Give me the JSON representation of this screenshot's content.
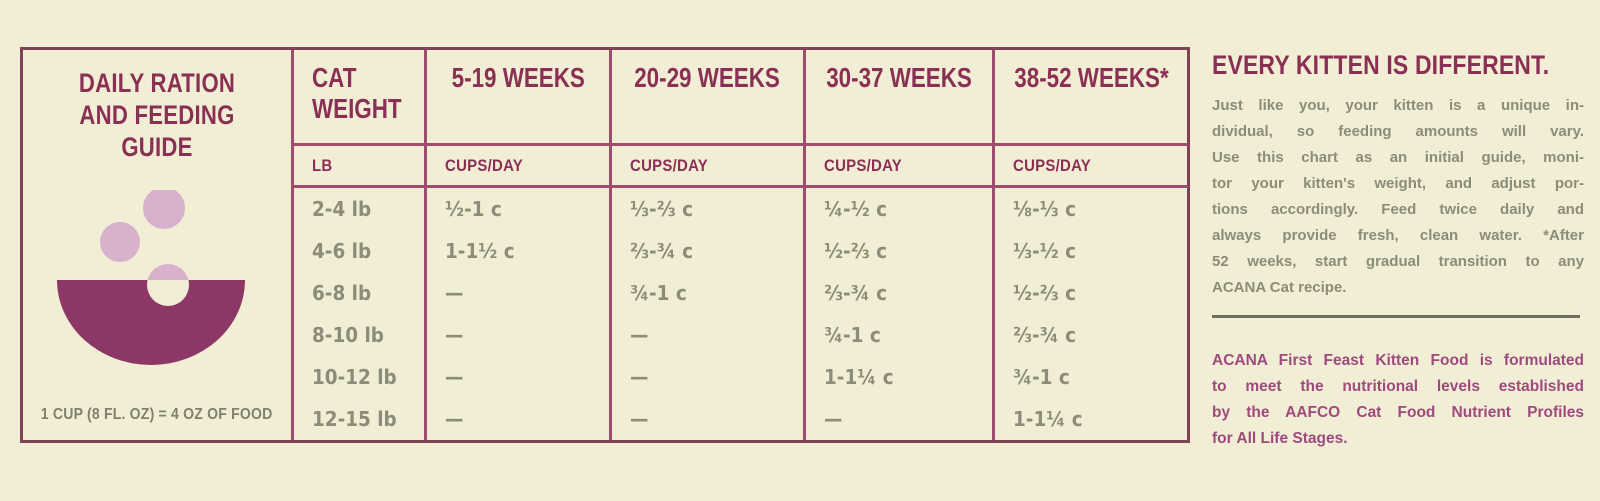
{
  "colors": {
    "background": "#f1eed5",
    "maroon_text": "#8a3054",
    "border_outer": "#7d4554",
    "border_inner": "#9c4e6c",
    "data_text_gray": "#8c8c7a",
    "caption_gray": "#80806f",
    "bowl": "#8d3766",
    "kibble_pink": "#d8b1cd",
    "aafco_text": "#9e4a7e",
    "divider": "#6e6e5f"
  },
  "feeding_table": {
    "title": "DAILY RATION\nAND FEEDING GUIDE",
    "caption": "1 CUP (8 FL. OZ) = 4 OZ OF FOOD",
    "columns": [
      {
        "header": "CAT WEIGHT",
        "subheader": "LB"
      },
      {
        "header": "5-19 WEEKS",
        "subheader": "CUPS/DAY"
      },
      {
        "header": "20-29 WEEKS",
        "subheader": "CUPS/DAY"
      },
      {
        "header": "30-37 WEEKS",
        "subheader": "CUPS/DAY"
      },
      {
        "header": "38-52 WEEKS*",
        "subheader": "CUPS/DAY"
      }
    ],
    "rows": [
      {
        "weight": "2-4 lb",
        "values": [
          "½-1 c",
          "⅓-⅔ c",
          "¼-½ c",
          "⅛-⅓ c"
        ]
      },
      {
        "weight": "4-6 lb",
        "values": [
          "1-1½ c",
          "⅔-¾ c",
          "½-⅔ c",
          "⅓-½ c"
        ]
      },
      {
        "weight": "6-8 lb",
        "values": [
          "—",
          "¾-1 c",
          "⅔-¾ c",
          "½-⅔ c"
        ]
      },
      {
        "weight": "8-10 lb",
        "values": [
          "—",
          "—",
          "¾-1 c",
          "⅔-¾ c"
        ]
      },
      {
        "weight": "10-12 lb",
        "values": [
          "—",
          "—",
          "1-1¼ c",
          "¾-1 c"
        ]
      },
      {
        "weight": "12-15 lb",
        "values": [
          "—",
          "—",
          "—",
          "1-1¼ c"
        ]
      }
    ]
  },
  "right_panel": {
    "heading": "EVERY KITTEN IS DIFFERENT.",
    "intro_lines": [
      "Just like you, your kitten is a unique in-",
      "dividual, so feeding amounts will vary.",
      "Use this chart as an initial guide, moni-",
      "tor your kitten's weight, and adjust por-",
      "tions accordingly. Feed twice daily and",
      "always provide fresh, clean water. *After",
      "52 weeks, start gradual transition to any",
      "ACANA Cat recipe."
    ],
    "aafco_lines": [
      "ACANA First Feast Kitten Food is formulated",
      "to meet the nutritional levels established",
      "by the AAFCO Cat Food Nutrient Profiles",
      "for All Life Stages."
    ]
  }
}
